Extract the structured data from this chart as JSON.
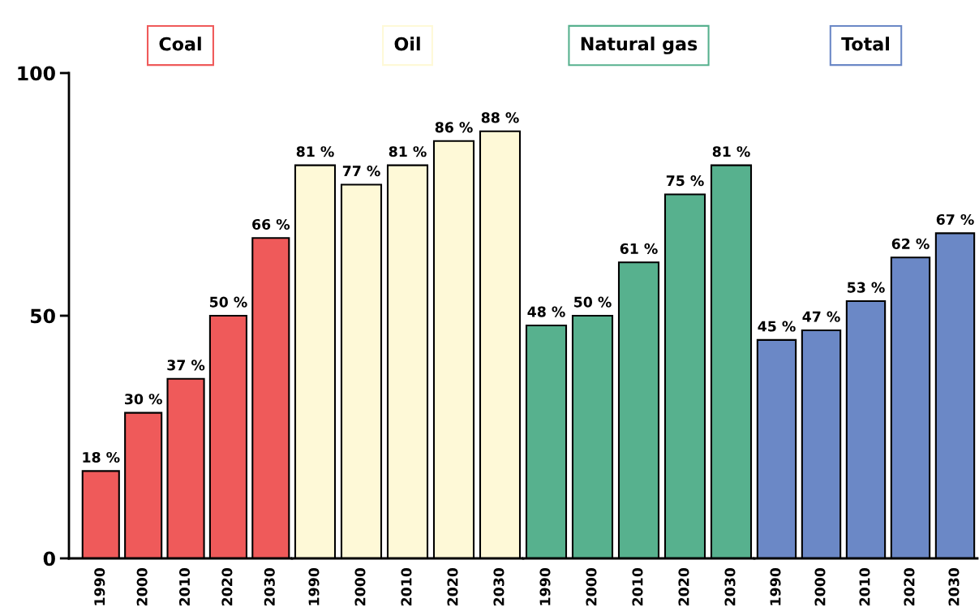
{
  "chart_data": [
    {
      "type": "bar",
      "title": "Coal",
      "categories": [
        "1990",
        "2000",
        "2010",
        "2020",
        "2030"
      ],
      "values": [
        18,
        30,
        37,
        50,
        66
      ],
      "value_labels": [
        "18 %",
        "30 %",
        "37 %",
        "50 %",
        "66 %"
      ],
      "color": "#ef5a5a",
      "ylim": [
        0,
        100
      ],
      "yticks": [
        0,
        50,
        100
      ]
    },
    {
      "type": "bar",
      "title": "Oil",
      "categories": [
        "1990",
        "2000",
        "2010",
        "2020",
        "2030"
      ],
      "values": [
        81,
        77,
        81,
        86,
        88
      ],
      "value_labels": [
        "81 %",
        "77 %",
        "81 %",
        "86 %",
        "88 %"
      ],
      "color": "#fef9d7",
      "ylim": [
        0,
        100
      ],
      "yticks": [
        0,
        50,
        100
      ],
      "tick_labels": "x"
    },
    {
      "type": "bar",
      "title": "Natural gas",
      "categories": [
        "1990",
        "2000",
        "2010",
        "2020",
        "2030"
      ],
      "values": [
        48,
        50,
        61,
        75,
        81
      ],
      "value_labels": [
        "48 %",
        "50 %",
        "61 %",
        "75 %",
        "81 %"
      ],
      "color": "#57b18e",
      "ylim": [
        0,
        100
      ],
      "yticks": [
        0,
        50,
        100
      ],
      "tick_labels": "x"
    },
    {
      "type": "bar",
      "title": "Total",
      "categories": [
        "1990",
        "2000",
        "2010",
        "2020",
        "2030"
      ],
      "values": [
        45,
        47,
        53,
        62,
        67
      ],
      "value_labels": [
        "45 %",
        "47 %",
        "53 %",
        "62 %",
        "67 %"
      ],
      "color": "#6b88c6",
      "ylim": [
        0,
        100
      ],
      "yticks": [
        0,
        50,
        100
      ],
      "tick_labels": "x"
    }
  ]
}
